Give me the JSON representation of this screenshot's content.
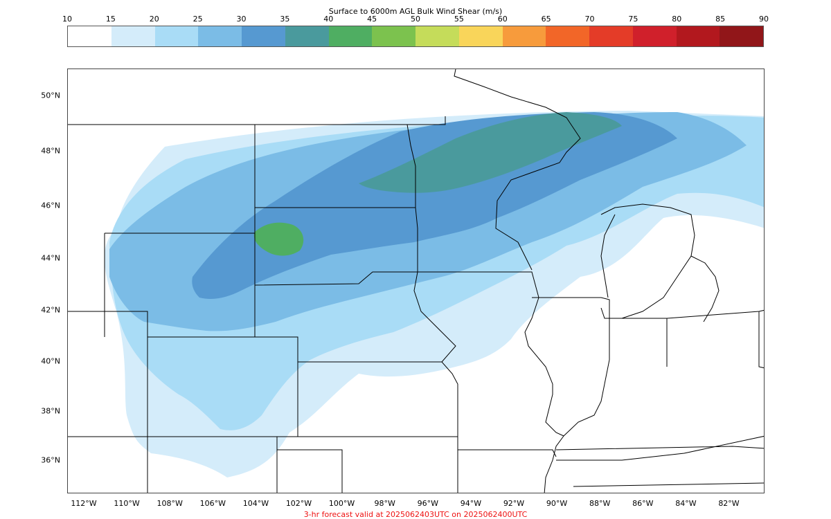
{
  "colorbar": {
    "title": "Surface to 6000m AGL Bulk Wind Shear (m/s)",
    "ticks": [
      "10",
      "15",
      "20",
      "25",
      "30",
      "35",
      "40",
      "45",
      "50",
      "55",
      "60",
      "65",
      "70",
      "75",
      "80",
      "85",
      "90"
    ],
    "colors": [
      "#ffffff",
      "#d4ecfa",
      "#a9dcf6",
      "#7bbce6",
      "#5699d1",
      "#4a9a9d",
      "#4fae62",
      "#7cc24e",
      "#c5dc5a",
      "#f9d55a",
      "#f79b3c",
      "#f26628",
      "#e43c28",
      "#d0202b",
      "#b2181e",
      "#911619"
    ]
  },
  "map": {
    "lat_labels": [
      "50°N",
      "48°N",
      "46°N",
      "44°N",
      "42°N",
      "40°N",
      "38°N",
      "36°N"
    ],
    "lon_labels": [
      "112°W",
      "110°W",
      "108°W",
      "106°W",
      "104°W",
      "102°W",
      "100°W",
      "98°W",
      "96°W",
      "94°W",
      "92°W",
      "90°W",
      "88°W",
      "86°W",
      "84°W",
      "82°W"
    ],
    "shear_levels": {
      "light": "#d4ecfa",
      "lightblue": "#a9dcf6",
      "mid": "#7bbce6",
      "blue": "#5699d1",
      "teal": "#4a9a9d",
      "green": "#4fae62"
    }
  },
  "footer": {
    "text": "3-hr forecast valid at 2025062403UTC on 2025062400UTC"
  }
}
